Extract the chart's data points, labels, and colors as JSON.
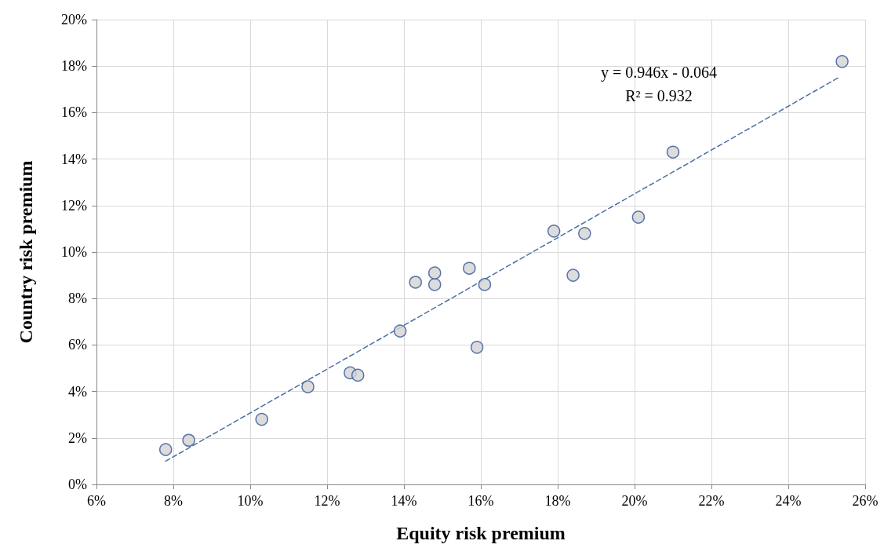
{
  "chart_data": {
    "type": "scatter",
    "xlabel": "Equity risk premium",
    "ylabel": "Country risk premium",
    "xlim": [
      6,
      26
    ],
    "ylim": [
      0,
      20
    ],
    "xticks": [
      {
        "value": 6,
        "label": "6%"
      },
      {
        "value": 8,
        "label": "8%"
      },
      {
        "value": 10,
        "label": "10%"
      },
      {
        "value": 12,
        "label": "12%"
      },
      {
        "value": 14,
        "label": "14%"
      },
      {
        "value": 16,
        "label": "16%"
      },
      {
        "value": 18,
        "label": "18%"
      },
      {
        "value": 20,
        "label": "20%"
      },
      {
        "value": 22,
        "label": "22%"
      },
      {
        "value": 24,
        "label": "24%"
      },
      {
        "value": 26,
        "label": "26%"
      }
    ],
    "yticks": [
      {
        "value": 0,
        "label": "0%"
      },
      {
        "value": 2,
        "label": "2%"
      },
      {
        "value": 4,
        "label": "4%"
      },
      {
        "value": 6,
        "label": "6%"
      },
      {
        "value": 8,
        "label": "8%"
      },
      {
        "value": 10,
        "label": "10%"
      },
      {
        "value": 12,
        "label": "12%"
      },
      {
        "value": 14,
        "label": "14%"
      },
      {
        "value": 16,
        "label": "16%"
      },
      {
        "value": 18,
        "label": "18%"
      },
      {
        "value": 20,
        "label": "20%"
      }
    ],
    "grid": true,
    "series": [
      {
        "color": "#d3d3d3",
        "marker": "circle",
        "x": [
          7.8,
          8.4,
          10.3,
          11.5,
          12.6,
          12.8,
          13.9,
          14.3,
          14.8,
          14.8,
          15.7,
          15.9,
          16.1,
          17.9,
          18.4,
          18.7,
          20.1,
          21.0,
          25.4
        ],
        "values": [
          1.5,
          1.9,
          2.8,
          4.2,
          4.8,
          4.7,
          6.6,
          8.7,
          8.6,
          9.1,
          9.3,
          5.9,
          8.6,
          10.9,
          9.0,
          10.8,
          11.5,
          14.3,
          18.2
        ]
      },
      {
        "type": "line",
        "color": "#4a6fa5",
        "marker": "none",
        "line_style": "dashed",
        "x": [
          7.8,
          25.3
        ],
        "values": [
          1.0,
          17.5
        ]
      }
    ],
    "annotations": [
      "y = 0.946x - 0.064",
      "R² = 0.932"
    ]
  }
}
